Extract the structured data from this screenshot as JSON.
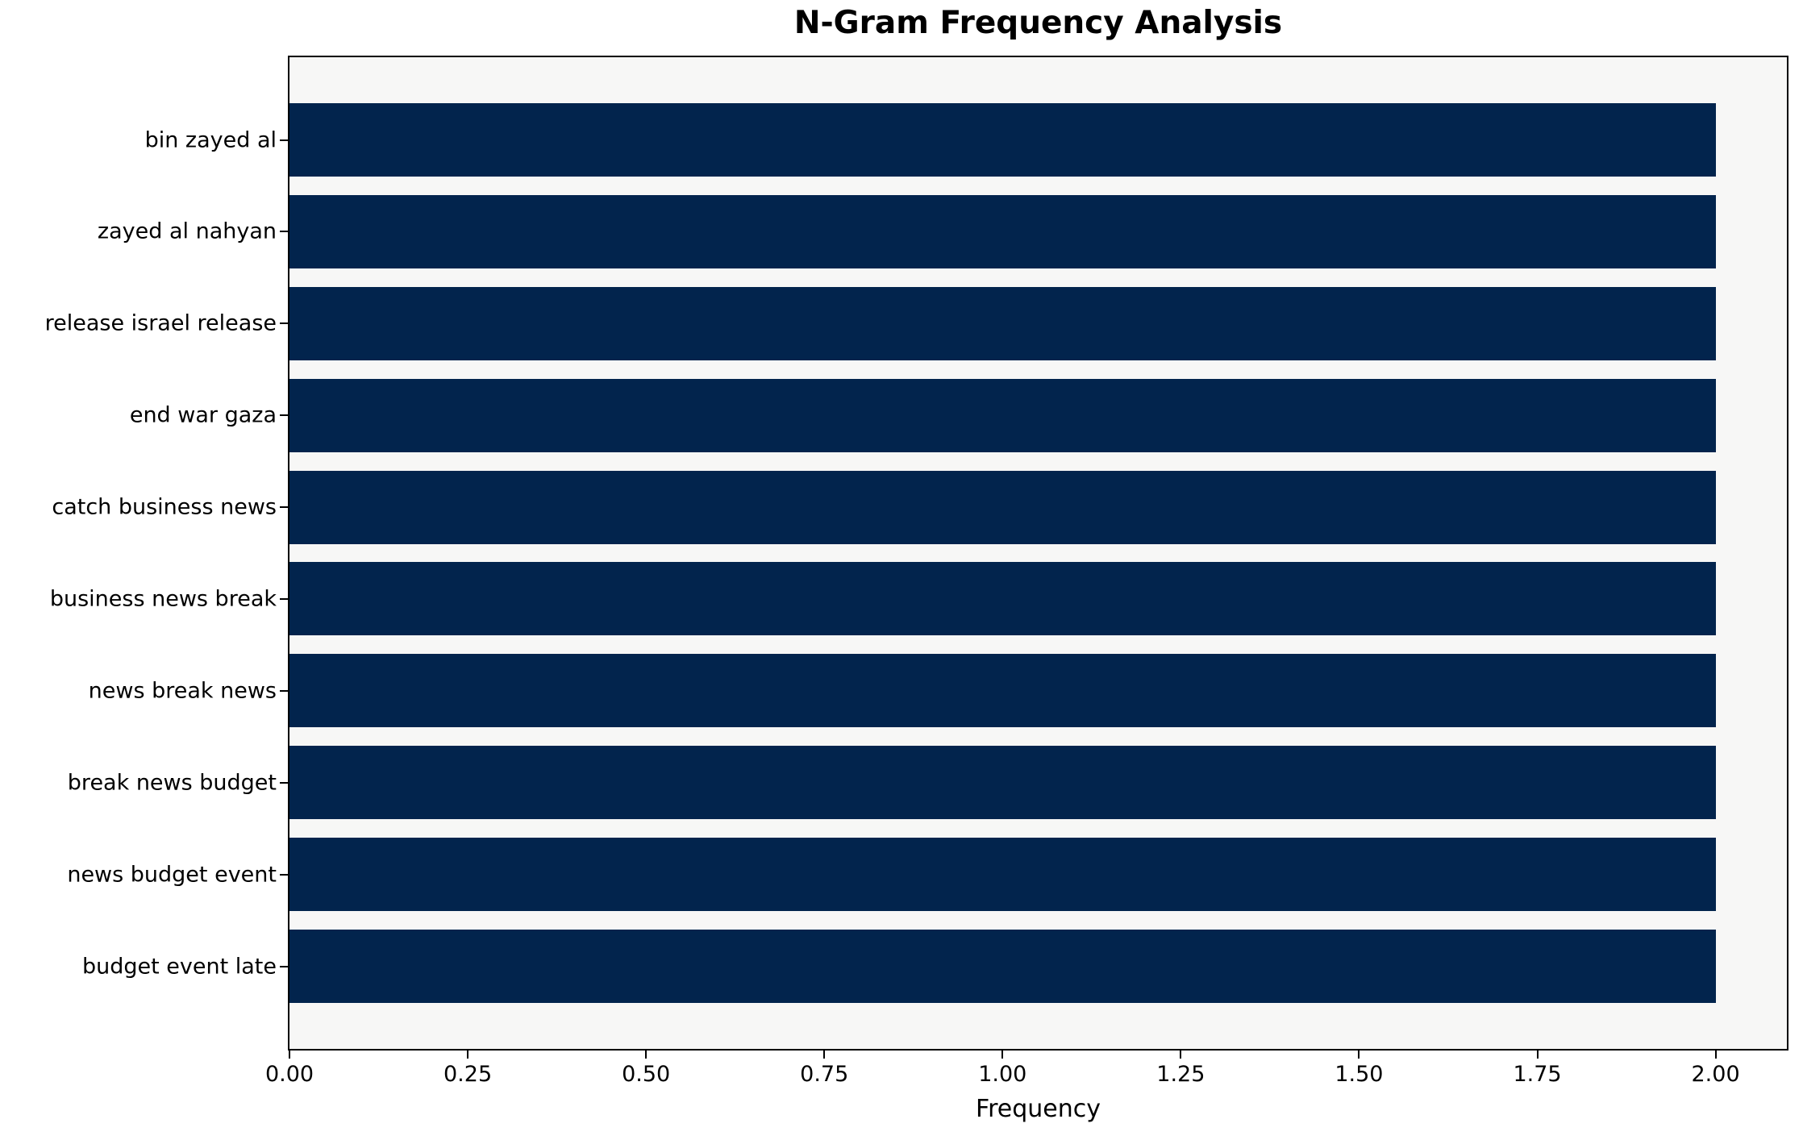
{
  "chart_data": {
    "type": "bar",
    "orientation": "horizontal",
    "title": "N-Gram Frequency Analysis",
    "xlabel": "Frequency",
    "ylabel": "",
    "categories": [
      "bin zayed al",
      "zayed al nahyan",
      "release israel release",
      "end war gaza",
      "catch business news",
      "business news break",
      "news break news",
      "break news budget",
      "news budget event",
      "budget event late"
    ],
    "values": [
      2,
      2,
      2,
      2,
      2,
      2,
      2,
      2,
      2,
      2
    ],
    "xlim": [
      0,
      2.1
    ],
    "x_ticks": [
      {
        "value": 0.0,
        "label": "0.00"
      },
      {
        "value": 0.25,
        "label": "0.25"
      },
      {
        "value": 0.5,
        "label": "0.50"
      },
      {
        "value": 0.75,
        "label": "0.75"
      },
      {
        "value": 1.0,
        "label": "1.00"
      },
      {
        "value": 1.25,
        "label": "1.25"
      },
      {
        "value": 1.5,
        "label": "1.50"
      },
      {
        "value": 1.75,
        "label": "1.75"
      },
      {
        "value": 2.0,
        "label": "2.00"
      }
    ],
    "grid": false,
    "legend": "none",
    "colors": {
      "bar": "#02244d",
      "plot_background": "#f7f7f6",
      "figure_background": "#ffffff",
      "axis": "#000000",
      "text": "#000000"
    }
  }
}
